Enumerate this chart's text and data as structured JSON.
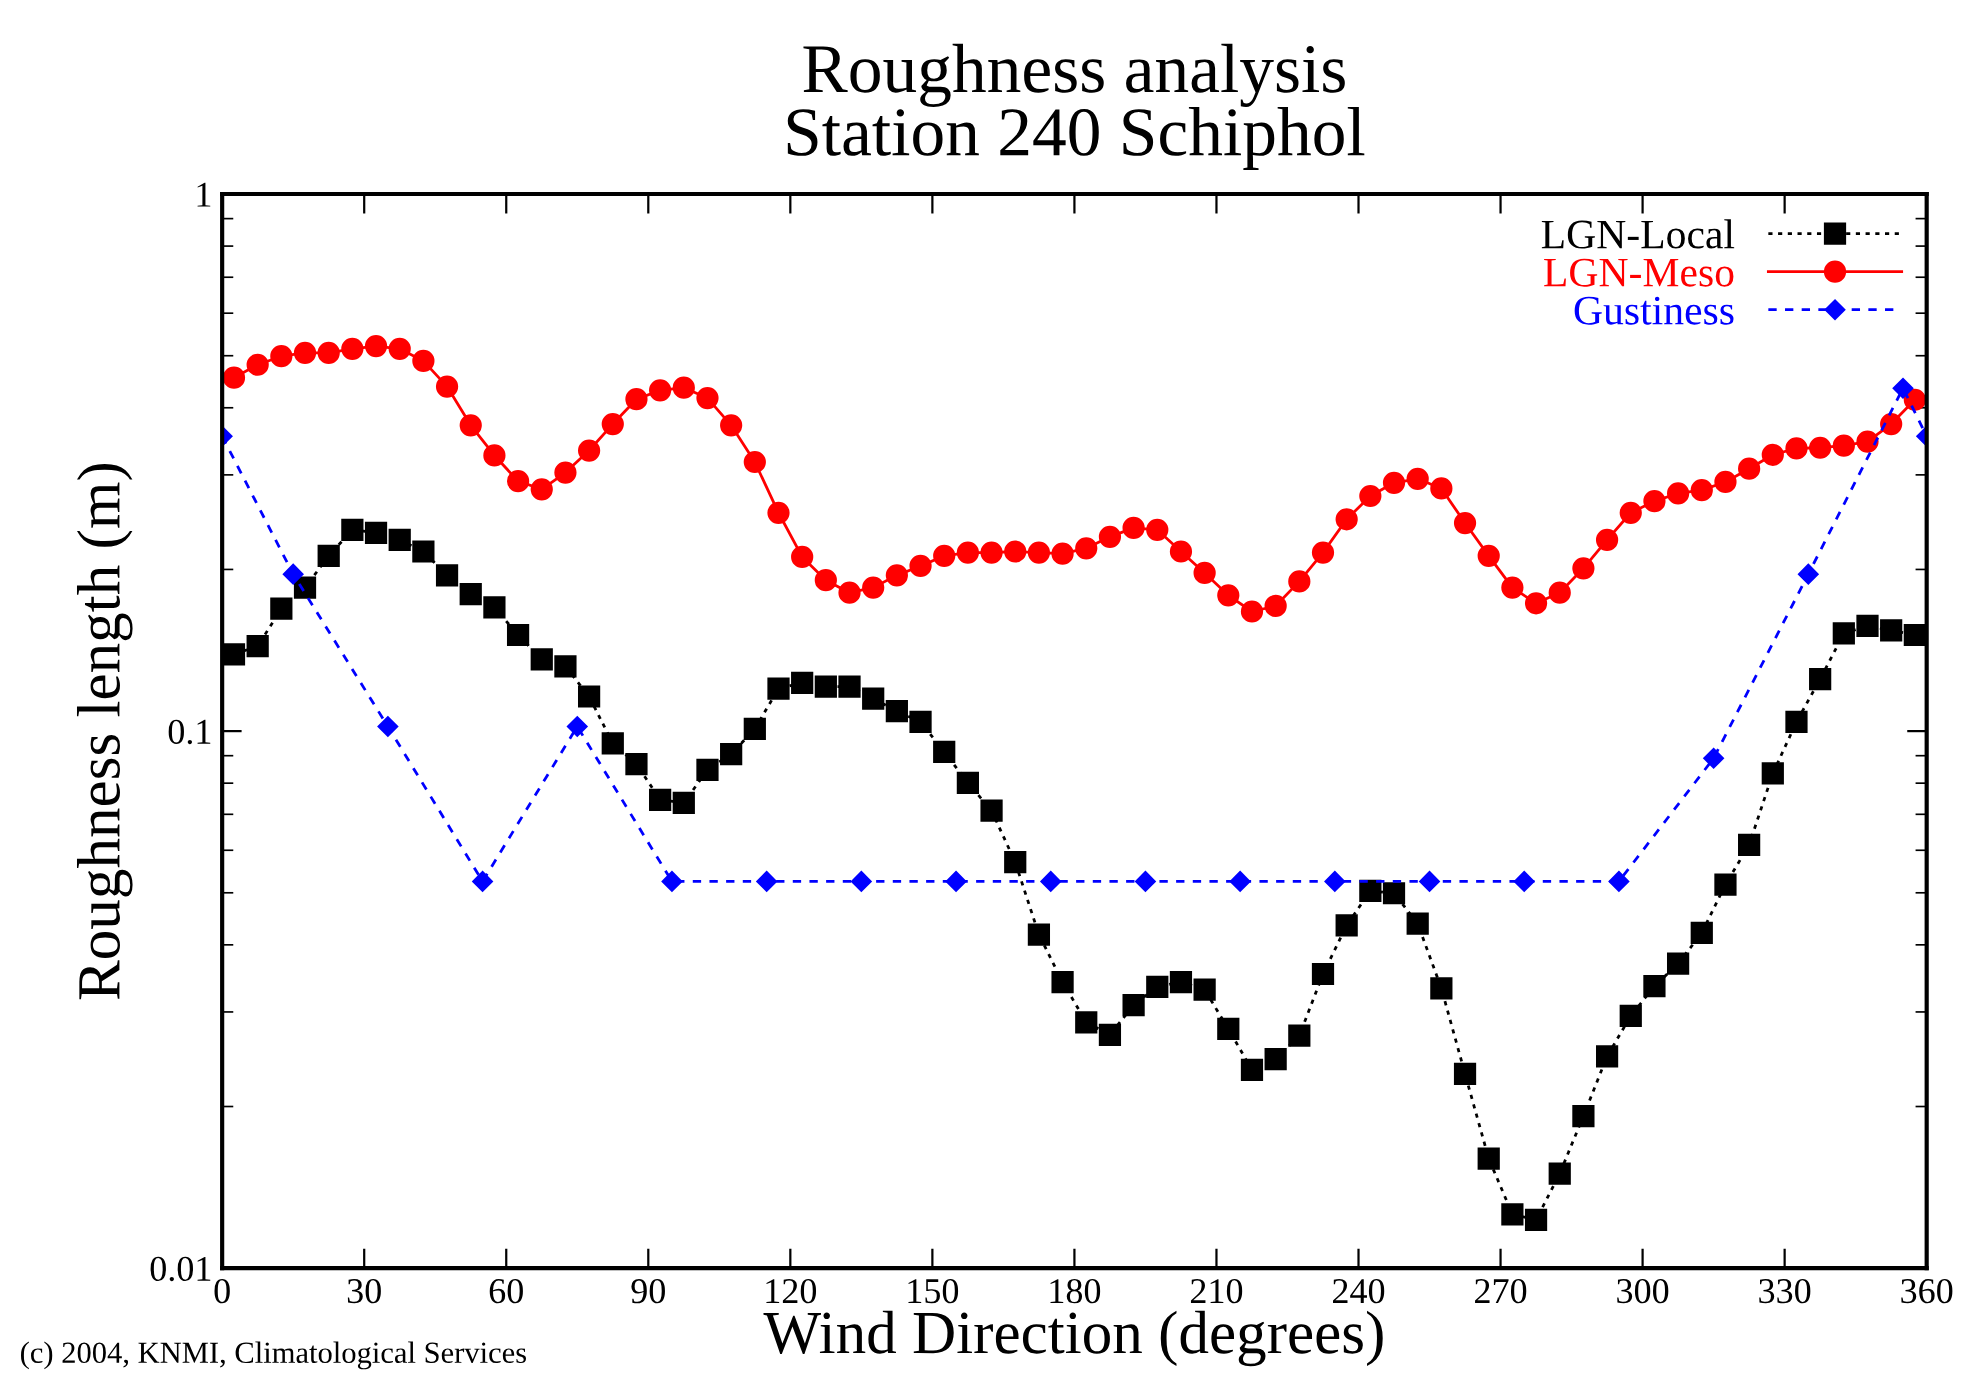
{
  "chart_data": {
    "type": "line",
    "title": "Roughness analysis\nStation 240 Schiphol",
    "xlabel": "Wind Direction (degrees)",
    "ylabel": "Roughness length (m)",
    "annotations": [
      "(c) 2004, KNMI, Climatological Services"
    ],
    "xlim": [
      0,
      360
    ],
    "xticks": [
      0,
      30,
      60,
      90,
      120,
      150,
      180,
      210,
      240,
      270,
      300,
      330,
      360
    ],
    "ylim": [
      0.01,
      1
    ],
    "yticks": [
      0.01,
      0.1,
      1
    ],
    "log": true,
    "grid": false,
    "legend": "top right",
    "series": [
      {
        "name": "LGN-Local",
        "color": "#000000",
        "marker": "square",
        "line_style": "dotted",
        "x": [
          2.5,
          7.5,
          12.5,
          17.5,
          22.5,
          27.5,
          32.5,
          37.5,
          42.5,
          47.5,
          52.5,
          57.5,
          62.5,
          67.5,
          72.5,
          77.5,
          82.5,
          87.5,
          92.5,
          97.5,
          102.5,
          107.5,
          112.5,
          117.5,
          122.5,
          127.5,
          132.5,
          137.5,
          142.5,
          147.5,
          152.5,
          157.5,
          162.5,
          167.5,
          172.5,
          177.5,
          182.5,
          187.5,
          192.5,
          197.5,
          202.5,
          207.5,
          212.5,
          217.5,
          222.5,
          227.5,
          232.5,
          237.5,
          242.5,
          247.5,
          252.5,
          257.5,
          262.5,
          267.5,
          272.5,
          277.5,
          282.5,
          287.5,
          292.5,
          297.5,
          302.5,
          307.5,
          312.5,
          317.5,
          322.5,
          327.5,
          332.5,
          337.5,
          342.5,
          347.5,
          352.5,
          357.5
        ],
        "values": [
          0.139,
          0.144,
          0.169,
          0.185,
          0.212,
          0.237,
          0.234,
          0.227,
          0.216,
          0.195,
          0.18,
          0.17,
          0.151,
          0.136,
          0.132,
          0.116,
          0.0949,
          0.0868,
          0.0745,
          0.0735,
          0.0847,
          0.0906,
          0.101,
          0.12,
          0.123,
          0.121,
          0.121,
          0.115,
          0.109,
          0.104,
          0.0915,
          0.0801,
          0.0711,
          0.057,
          0.0418,
          0.0341,
          0.0287,
          0.0272,
          0.0309,
          0.0334,
          0.0341,
          0.033,
          0.0279,
          0.0234,
          0.0245,
          0.0271,
          0.0353,
          0.0435,
          0.0504,
          0.0499,
          0.0438,
          0.0332,
          0.023,
          0.016,
          0.0126,
          0.0123,
          0.015,
          0.0192,
          0.0248,
          0.0295,
          0.0335,
          0.0369,
          0.0421,
          0.0518,
          0.0614,
          0.0834,
          0.104,
          0.125,
          0.152,
          0.157,
          0.154,
          0.151
        ]
      },
      {
        "name": "LGN-Meso",
        "color": "#ff0000",
        "marker": "circle",
        "line_style": "solid",
        "x": [
          2.5,
          7.5,
          12.5,
          17.5,
          22.5,
          27.5,
          32.5,
          37.5,
          42.5,
          47.5,
          52.5,
          57.5,
          62.5,
          67.5,
          72.5,
          77.5,
          82.5,
          87.5,
          92.5,
          97.5,
          102.5,
          107.5,
          112.5,
          117.5,
          122.5,
          127.5,
          132.5,
          137.5,
          142.5,
          147.5,
          152.5,
          157.5,
          162.5,
          167.5,
          172.5,
          177.5,
          182.5,
          187.5,
          192.5,
          197.5,
          202.5,
          207.5,
          212.5,
          217.5,
          222.5,
          227.5,
          232.5,
          237.5,
          242.5,
          247.5,
          252.5,
          257.5,
          262.5,
          267.5,
          272.5,
          277.5,
          282.5,
          287.5,
          292.5,
          297.5,
          302.5,
          307.5,
          312.5,
          317.5,
          322.5,
          327.5,
          332.5,
          337.5,
          342.5,
          347.5,
          352.5,
          357.5
        ],
        "values": [
          0.455,
          0.481,
          0.499,
          0.506,
          0.506,
          0.515,
          0.521,
          0.515,
          0.489,
          0.438,
          0.371,
          0.326,
          0.292,
          0.282,
          0.303,
          0.333,
          0.373,
          0.415,
          0.431,
          0.436,
          0.417,
          0.371,
          0.317,
          0.255,
          0.211,
          0.191,
          0.181,
          0.185,
          0.195,
          0.203,
          0.212,
          0.215,
          0.215,
          0.216,
          0.215,
          0.214,
          0.219,
          0.23,
          0.239,
          0.237,
          0.216,
          0.197,
          0.179,
          0.167,
          0.171,
          0.19,
          0.215,
          0.248,
          0.274,
          0.29,
          0.295,
          0.283,
          0.244,
          0.212,
          0.185,
          0.173,
          0.181,
          0.201,
          0.227,
          0.255,
          0.268,
          0.277,
          0.281,
          0.291,
          0.308,
          0.327,
          0.336,
          0.337,
          0.34,
          0.346,
          0.373,
          0.414
        ]
      },
      {
        "name": "Gustiness",
        "color": "#0000ff",
        "marker": "diamond",
        "line_style": "dashed",
        "x": [
          0,
          15,
          35,
          55,
          75,
          95,
          115,
          135,
          155,
          175,
          195,
          215,
          235,
          255,
          275,
          295,
          315,
          335,
          355,
          360
        ],
        "values": [
          0.354,
          0.196,
          0.102,
          0.0525,
          0.102,
          0.0525,
          0.0525,
          0.0525,
          0.0525,
          0.0525,
          0.0525,
          0.0525,
          0.0525,
          0.0525,
          0.0525,
          0.0525,
          0.089,
          0.196,
          0.435,
          0.354
        ]
      }
    ]
  }
}
